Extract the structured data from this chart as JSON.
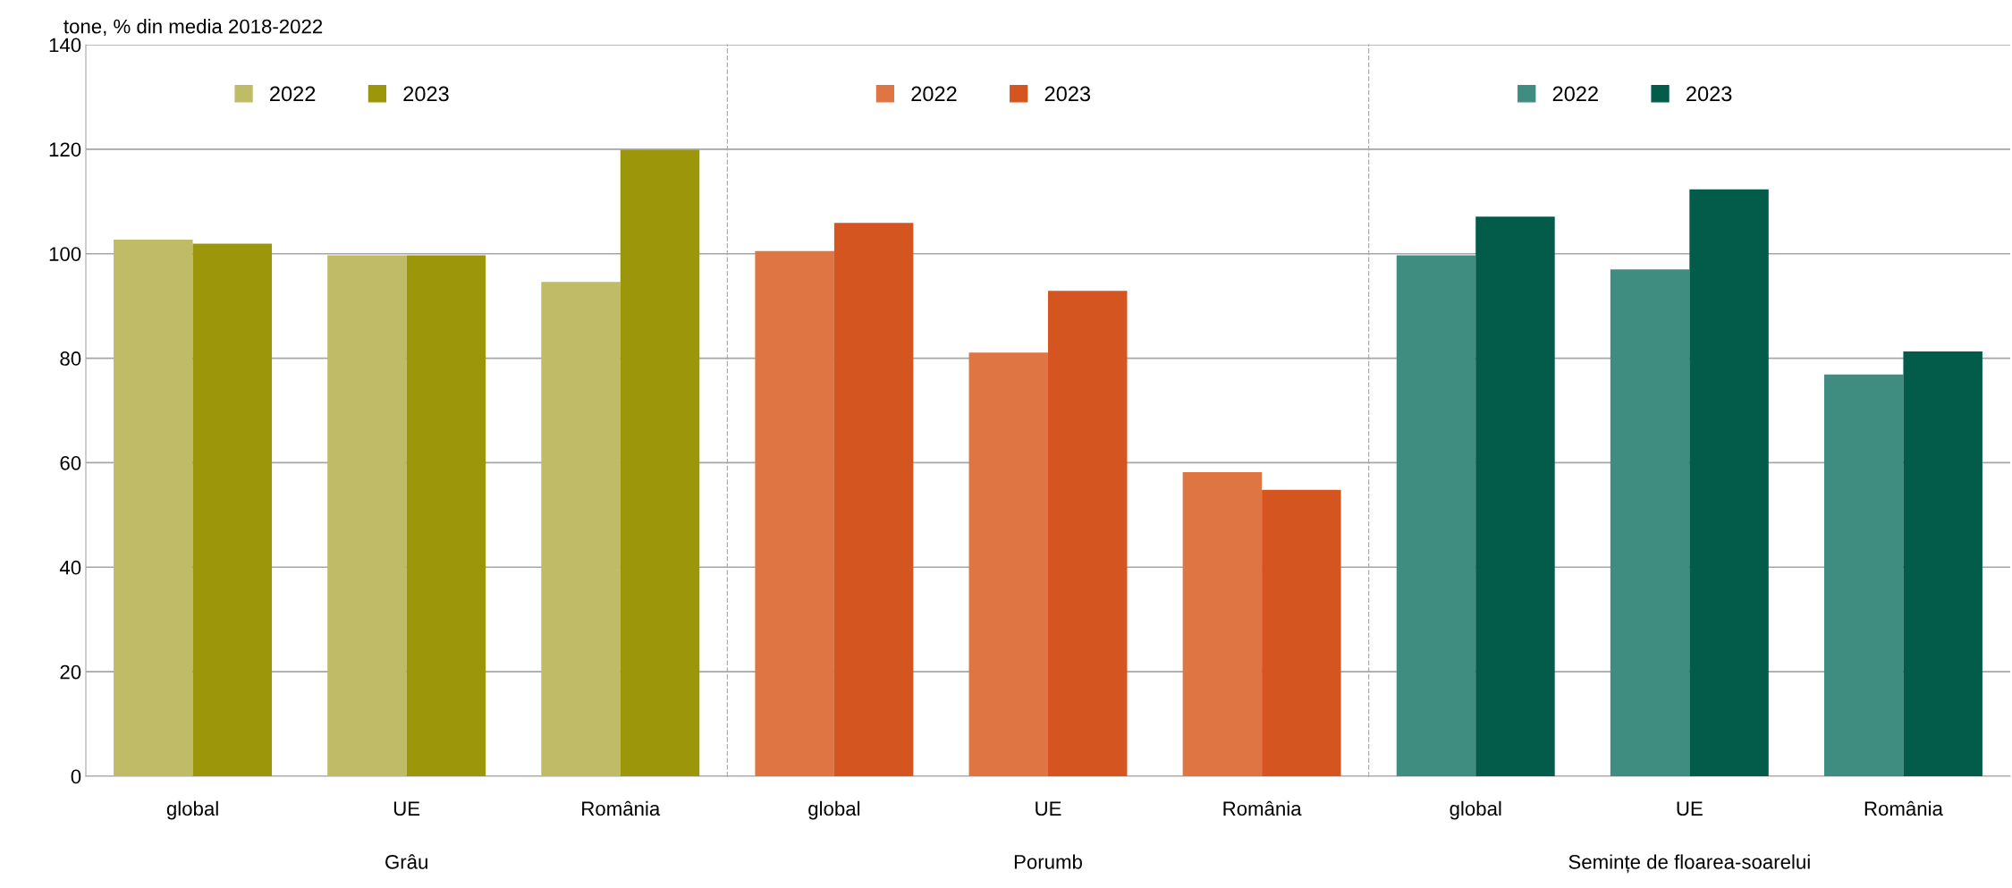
{
  "chart_data": [
    {
      "type": "bar",
      "ylabel": "tone, % din media 2018-2022",
      "xlabel": "Grâu",
      "categories": [
        "global",
        "UE",
        "România"
      ],
      "ylim": [
        0,
        140
      ],
      "yticks": [
        0,
        20,
        40,
        60,
        80,
        100,
        120,
        140
      ],
      "grid": "y",
      "legend": "top",
      "series": [
        {
          "name": "2022",
          "color": "#bfbb67",
          "values": [
            102.7,
            99.7,
            94.6
          ]
        },
        {
          "name": "2023",
          "color": "#9c960a",
          "values": [
            101.9,
            99.7,
            119.9
          ]
        }
      ]
    },
    {
      "type": "bar",
      "xlabel": "Porumb",
      "categories": [
        "global",
        "UE",
        "România"
      ],
      "ylim": [
        0,
        140
      ],
      "yticks": [
        0,
        20,
        40,
        60,
        80,
        100,
        120,
        140
      ],
      "grid": "y",
      "legend": "top",
      "tick_labels": "x",
      "series": [
        {
          "name": "2022",
          "color": "#df7543",
          "values": [
            100.5,
            81.1,
            58.2
          ]
        },
        {
          "name": "2023",
          "color": "#d55520",
          "values": [
            105.9,
            92.9,
            54.8
          ]
        }
      ]
    },
    {
      "type": "bar",
      "xlabel": "Semințe de floarea-soarelui",
      "categories": [
        "global",
        "UE",
        "România"
      ],
      "ylim": [
        0,
        140
      ],
      "yticks": [
        0,
        20,
        40,
        60,
        80,
        100,
        120,
        140
      ],
      "grid": "y",
      "legend": "top",
      "tick_labels": "x",
      "series": [
        {
          "name": "2022",
          "color": "#3f8c80",
          "values": [
            99.7,
            97.0,
            76.9
          ]
        },
        {
          "name": "2023",
          "color": "#035b4a",
          "values": [
            107.1,
            112.3,
            81.3
          ]
        }
      ]
    }
  ]
}
